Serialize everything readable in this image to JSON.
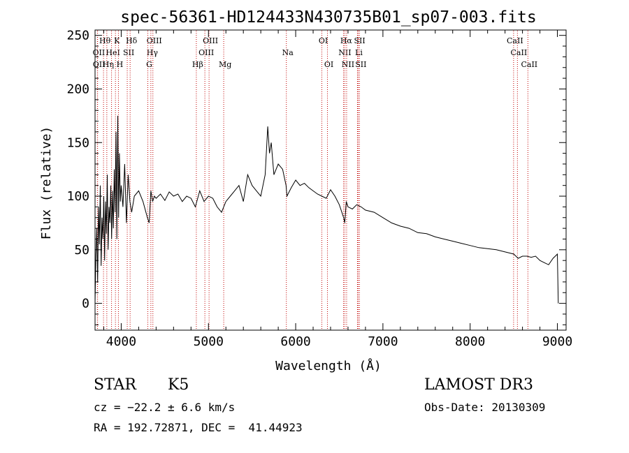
{
  "chart_data": {
    "type": "line",
    "title": "spec-56361-HD124433N430735B01_sp07-003.fits",
    "xlabel": "Wavelength (Å)",
    "ylabel": "Flux (relative)",
    "xlim": [
      3700,
      9100
    ],
    "ylim": [
      -25,
      255
    ],
    "xticks": [
      4000,
      5000,
      6000,
      7000,
      8000,
      9000
    ],
    "yticks": [
      0,
      50,
      100,
      150,
      200,
      250
    ],
    "grid": false,
    "series": [
      {
        "name": "spectrum",
        "x": [
          3700,
          3710,
          3720,
          3730,
          3740,
          3750,
          3760,
          3770,
          3780,
          3790,
          3800,
          3810,
          3820,
          3830,
          3840,
          3850,
          3860,
          3870,
          3880,
          3890,
          3900,
          3910,
          3920,
          3930,
          3940,
          3950,
          3960,
          3970,
          3980,
          3990,
          4000,
          4020,
          4040,
          4060,
          4080,
          4100,
          4120,
          4150,
          4200,
          4250,
          4300,
          4320,
          4340,
          4360,
          4380,
          4400,
          4450,
          4500,
          4550,
          4600,
          4650,
          4700,
          4750,
          4800,
          4850,
          4900,
          4950,
          5000,
          5050,
          5100,
          5150,
          5200,
          5250,
          5300,
          5350,
          5400,
          5450,
          5500,
          5550,
          5600,
          5650,
          5680,
          5700,
          5720,
          5750,
          5800,
          5850,
          5890,
          5900,
          5950,
          6000,
          6050,
          6100,
          6150,
          6200,
          6250,
          6300,
          6350,
          6400,
          6450,
          6500,
          6550,
          6563,
          6580,
          6600,
          6650,
          6700,
          6750,
          6800,
          6900,
          7000,
          7100,
          7200,
          7300,
          7400,
          7500,
          7600,
          7700,
          7800,
          7900,
          8000,
          8100,
          8200,
          8300,
          8400,
          8500,
          8550,
          8600,
          8650,
          8700,
          8750,
          8800,
          8850,
          8900,
          8950,
          9000,
          9010
        ],
        "y": [
          0,
          45,
          70,
          20,
          90,
          55,
          110,
          35,
          80,
          60,
          100,
          40,
          95,
          65,
          120,
          50,
          90,
          75,
          110,
          60,
          105,
          70,
          125,
          85,
          160,
          60,
          175,
          80,
          140,
          95,
          110,
          90,
          130,
          75,
          120,
          95,
          85,
          100,
          105,
          95,
          80,
          75,
          105,
          95,
          100,
          98,
          102,
          96,
          104,
          100,
          102,
          95,
          100,
          98,
          90,
          105,
          95,
          100,
          98,
          90,
          85,
          95,
          100,
          105,
          110,
          95,
          120,
          110,
          105,
          100,
          120,
          165,
          140,
          150,
          120,
          130,
          125,
          110,
          100,
          108,
          115,
          110,
          112,
          108,
          105,
          102,
          100,
          98,
          106,
          100,
          92,
          80,
          75,
          95,
          90,
          88,
          92,
          90,
          87,
          85,
          80,
          75,
          72,
          70,
          66,
          65,
          62,
          60,
          58,
          56,
          54,
          52,
          51,
          50,
          48,
          46,
          42,
          44,
          44,
          43,
          44,
          40,
          38,
          36,
          42,
          46,
          0
        ]
      }
    ],
    "lines": [
      {
        "name": "Hθ",
        "wavelength": 3797,
        "row": 1,
        "side": "left"
      },
      {
        "name": "OII",
        "wavelength": 3727,
        "row": 2,
        "side": "left"
      },
      {
        "name": "OII",
        "wavelength": 3729,
        "row": 3,
        "side": "left"
      },
      {
        "name": "HeI",
        "wavelength": 3889,
        "row": 2,
        "side": "left"
      },
      {
        "name": "Hη",
        "wavelength": 3835,
        "row": 3,
        "side": "left"
      },
      {
        "name": "K",
        "wavelength": 3934,
        "row": 1,
        "side": "left"
      },
      {
        "name": "H",
        "wavelength": 3968,
        "row": 3,
        "side": "left"
      },
      {
        "name": "SII",
        "wavelength": 4069,
        "row": 2,
        "side": "left"
      },
      {
        "name": "Hδ",
        "wavelength": 4102,
        "row": 1,
        "side": "left"
      },
      {
        "name": "OIII",
        "wavelength": 4363,
        "row": 1,
        "side": "left"
      },
      {
        "name": "Hγ",
        "wavelength": 4340,
        "row": 2,
        "side": "left"
      },
      {
        "name": "G",
        "wavelength": 4305,
        "row": 3,
        "side": "left"
      },
      {
        "name": "OIII",
        "wavelength": 5007,
        "row": 1,
        "side": "left"
      },
      {
        "name": "OIII",
        "wavelength": 4959,
        "row": 2,
        "side": "left"
      },
      {
        "name": "Hβ",
        "wavelength": 4861,
        "row": 3,
        "side": "left"
      },
      {
        "name": "Mg",
        "wavelength": 5175,
        "row": 3,
        "side": "left"
      },
      {
        "name": "Na",
        "wavelength": 5893,
        "row": 2,
        "side": "left"
      },
      {
        "name": "OI",
        "wavelength": 6300,
        "row": 1,
        "side": "left"
      },
      {
        "name": "OI",
        "wavelength": 6364,
        "row": 3,
        "side": "left"
      },
      {
        "name": "Hα",
        "wavelength": 6563,
        "row": 1,
        "side": "left"
      },
      {
        "name": "NII",
        "wavelength": 6548,
        "row": 2,
        "side": "left"
      },
      {
        "name": "NII",
        "wavelength": 6584,
        "row": 3,
        "side": "left"
      },
      {
        "name": "SII",
        "wavelength": 6717,
        "row": 1,
        "side": "left"
      },
      {
        "name": "Li",
        "wavelength": 6708,
        "row": 2,
        "side": "left"
      },
      {
        "name": "SII",
        "wavelength": 6731,
        "row": 3,
        "side": "left"
      },
      {
        "name": "CaII",
        "wavelength": 8498,
        "row": 1,
        "side": "left"
      },
      {
        "name": "CaII",
        "wavelength": 8542,
        "row": 2,
        "side": "left"
      },
      {
        "name": "CaII",
        "wavelength": 8662,
        "row": 3,
        "side": "left"
      }
    ]
  },
  "info": {
    "object_class": "STAR",
    "subclass": "K5",
    "survey": "LAMOST DR3",
    "redshift": "cz = −22.2 ± 6.6 km/s",
    "obs_date": "Obs-Date: 20130309",
    "coords": "RA = 192.72871, DEC =  41.44923"
  },
  "colors": {
    "spectrum": "#000000",
    "lines": "#c00000",
    "axes": "#000000"
  }
}
